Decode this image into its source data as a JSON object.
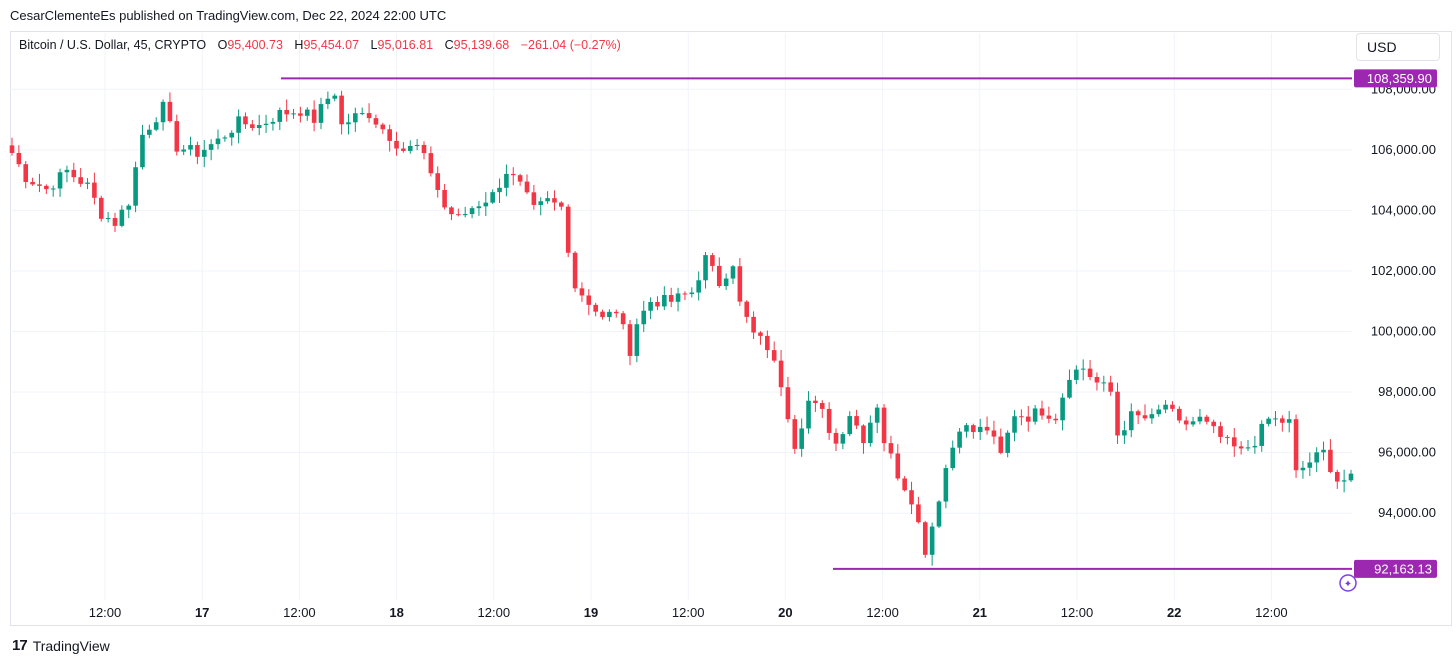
{
  "header": {
    "published": "CesarClementeEs published on TradingView.com, Dec 22, 2024 22:00 UTC"
  },
  "legend": {
    "symbol": "Bitcoin / U.S. Dollar, 45, CRYPTO",
    "o_label": "O",
    "o_value": "95,400.73",
    "h_label": "H",
    "h_value": "95,454.07",
    "l_label": "L",
    "l_value": "95,016.81",
    "c_label": "C",
    "c_value": "95,139.68",
    "change": "−261.04 (−0.27%)"
  },
  "currency_button": "USD",
  "footer": {
    "brand": "TradingView",
    "logo": "TV-logo-icon"
  },
  "colors": {
    "up": "#089981",
    "down": "#f23645",
    "level": "#9c27b0",
    "grid": "#f0f3fa",
    "axis_text": "#131722"
  },
  "chart_data": {
    "type": "candlestick",
    "timeframe": "45",
    "ylim": [
      91200,
      108900
    ],
    "y_ticks": [
      94000,
      96000,
      98000,
      100000,
      102000,
      104000,
      106000,
      108000
    ],
    "y_tick_labels": [
      "94,000.00",
      "96,000.00",
      "98,000.00",
      "100,000.00",
      "102,000.00",
      "104,000.00",
      "106,000.00",
      "108,000.00"
    ],
    "x_ticks": [
      {
        "label": "12:00",
        "bold": false
      },
      {
        "label": "17",
        "bold": true
      },
      {
        "label": "12:00",
        "bold": false
      },
      {
        "label": "18",
        "bold": true
      },
      {
        "label": "12:00",
        "bold": false
      },
      {
        "label": "19",
        "bold": true
      },
      {
        "label": "12:00",
        "bold": false
      },
      {
        "label": "20",
        "bold": true
      },
      {
        "label": "12:00",
        "bold": false
      },
      {
        "label": "21",
        "bold": true
      },
      {
        "label": "12:00",
        "bold": false
      },
      {
        "label": "22",
        "bold": true
      },
      {
        "label": "12:00",
        "bold": false
      }
    ],
    "levels": [
      {
        "value": 108359.9,
        "label": "108,359.90"
      },
      {
        "value": 92163.13,
        "label": "92,163.13"
      }
    ],
    "anchors": [
      {
        "t": 0,
        "p": 105900
      },
      {
        "t": 2,
        "p": 105100
      },
      {
        "t": 5,
        "p": 104700
      },
      {
        "t": 8,
        "p": 105300
      },
      {
        "t": 11,
        "p": 104800
      },
      {
        "t": 13,
        "p": 103900
      },
      {
        "t": 15,
        "p": 103600
      },
      {
        "t": 17,
        "p": 104300
      },
      {
        "t": 19,
        "p": 106500
      },
      {
        "t": 22,
        "p": 107400
      },
      {
        "t": 24,
        "p": 106100
      },
      {
        "t": 27,
        "p": 105900
      },
      {
        "t": 30,
        "p": 106300
      },
      {
        "t": 33,
        "p": 106900
      },
      {
        "t": 36,
        "p": 106800
      },
      {
        "t": 39,
        "p": 107200
      },
      {
        "t": 42,
        "p": 107300
      },
      {
        "t": 44,
        "p": 107000
      },
      {
        "t": 46,
        "p": 107700
      },
      {
        "t": 47,
        "p": 107900
      },
      {
        "t": 48,
        "p": 106800
      },
      {
        "t": 50,
        "p": 107100
      },
      {
        "t": 52,
        "p": 107200
      },
      {
        "t": 54,
        "p": 106700
      },
      {
        "t": 57,
        "p": 106000
      },
      {
        "t": 59,
        "p": 106100
      },
      {
        "t": 61,
        "p": 105300
      },
      {
        "t": 63,
        "p": 104100
      },
      {
        "t": 65,
        "p": 103700
      },
      {
        "t": 67,
        "p": 104100
      },
      {
        "t": 70,
        "p": 104500
      },
      {
        "t": 72,
        "p": 105300
      },
      {
        "t": 74,
        "p": 104800
      },
      {
        "t": 76,
        "p": 104000
      },
      {
        "t": 78,
        "p": 104300
      },
      {
        "t": 80,
        "p": 104100
      },
      {
        "t": 82,
        "p": 101500
      },
      {
        "t": 84,
        "p": 101000
      },
      {
        "t": 86,
        "p": 100400
      },
      {
        "t": 88,
        "p": 100700
      },
      {
        "t": 90,
        "p": 99400
      },
      {
        "t": 91,
        "p": 100300
      },
      {
        "t": 93,
        "p": 101000
      },
      {
        "t": 96,
        "p": 101000
      },
      {
        "t": 99,
        "p": 101300
      },
      {
        "t": 101,
        "p": 102400
      },
      {
        "t": 103,
        "p": 101600
      },
      {
        "t": 105,
        "p": 102300
      },
      {
        "t": 106,
        "p": 100900
      },
      {
        "t": 108,
        "p": 99900
      },
      {
        "t": 110,
        "p": 99500
      },
      {
        "t": 112,
        "p": 98300
      },
      {
        "t": 114,
        "p": 96300
      },
      {
        "t": 116,
        "p": 97700
      },
      {
        "t": 118,
        "p": 97300
      },
      {
        "t": 120,
        "p": 96300
      },
      {
        "t": 122,
        "p": 97300
      },
      {
        "t": 124,
        "p": 96500
      },
      {
        "t": 126,
        "p": 97600
      },
      {
        "t": 127,
        "p": 96400
      },
      {
        "t": 129,
        "p": 95300
      },
      {
        "t": 131,
        "p": 94500
      },
      {
        "t": 133,
        "p": 92800
      },
      {
        "t": 134,
        "p": 93600
      },
      {
        "t": 136,
        "p": 95500
      },
      {
        "t": 138,
        "p": 96900
      },
      {
        "t": 140,
        "p": 96700
      },
      {
        "t": 142,
        "p": 96800
      },
      {
        "t": 144,
        "p": 95900
      },
      {
        "t": 146,
        "p": 97300
      },
      {
        "t": 148,
        "p": 97200
      },
      {
        "t": 150,
        "p": 97400
      },
      {
        "t": 152,
        "p": 97200
      },
      {
        "t": 154,
        "p": 98600
      },
      {
        "t": 156,
        "p": 98800
      },
      {
        "t": 158,
        "p": 98300
      },
      {
        "t": 160,
        "p": 98000
      },
      {
        "t": 161,
        "p": 96600
      },
      {
        "t": 163,
        "p": 97200
      },
      {
        "t": 166,
        "p": 97100
      },
      {
        "t": 168,
        "p": 97600
      },
      {
        "t": 170,
        "p": 96900
      },
      {
        "t": 173,
        "p": 97100
      },
      {
        "t": 175,
        "p": 96700
      },
      {
        "t": 177,
        "p": 96300
      },
      {
        "t": 179,
        "p": 96000
      },
      {
        "t": 181,
        "p": 96400
      },
      {
        "t": 183,
        "p": 97100
      },
      {
        "t": 186,
        "p": 97000
      },
      {
        "t": 187,
        "p": 95300
      },
      {
        "t": 189,
        "p": 95700
      },
      {
        "t": 191,
        "p": 96000
      },
      {
        "t": 193,
        "p": 95100
      },
      {
        "t": 195,
        "p": 95100
      }
    ]
  }
}
